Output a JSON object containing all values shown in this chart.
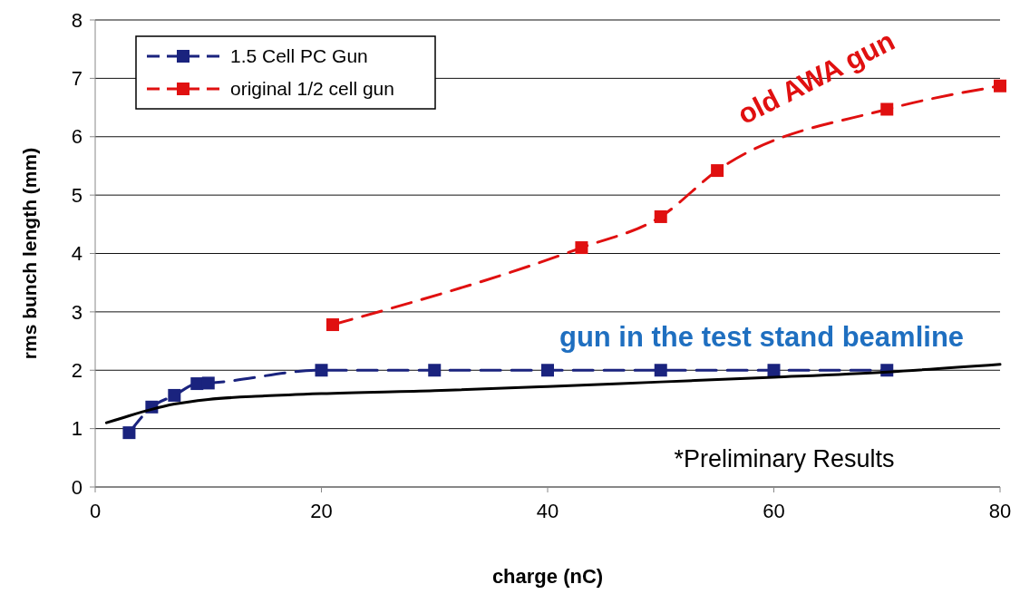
{
  "chart_data": {
    "type": "line",
    "xlabel": "charge (nC)",
    "ylabel": "rms bunch length (mm)",
    "xlim": [
      0,
      80
    ],
    "xticks": [
      0,
      20,
      40,
      60,
      80
    ],
    "ylim": [
      0,
      8
    ],
    "yticks": [
      0,
      1,
      2,
      3,
      4,
      5,
      6,
      7,
      8
    ],
    "grid": "y",
    "legend": "top left",
    "series": [
      {
        "name": "1.5 Cell PC Gun",
        "color": "#1a237e",
        "marker": "square",
        "line_style": "dashed",
        "x": [
          3,
          5,
          7,
          9,
          10,
          20,
          30,
          40,
          50,
          60,
          70
        ],
        "values": [
          0.93,
          1.37,
          1.57,
          1.77,
          1.78,
          2.0,
          2.0,
          2.0,
          2.0,
          2.0,
          2.0
        ]
      },
      {
        "name": "original 1/2 cell gun",
        "color": "#e01010",
        "marker": "square",
        "line_style": "dashed",
        "x": [
          21,
          43,
          50,
          55,
          70,
          80
        ],
        "values": [
          2.78,
          4.1,
          4.63,
          5.42,
          6.47,
          6.87
        ]
      },
      {
        "color": "#000000",
        "marker": "none",
        "line_style": "solid",
        "x": [
          1,
          3,
          5,
          7,
          10,
          15,
          20,
          30,
          40,
          50,
          60,
          70,
          80
        ],
        "values": [
          1.1,
          1.22,
          1.33,
          1.42,
          1.5,
          1.56,
          1.6,
          1.65,
          1.72,
          1.8,
          1.88,
          1.97,
          2.1
        ]
      }
    ],
    "annotations": [
      "old AWA gun",
      "gun in the test stand beamline",
      "*Preliminary Results"
    ]
  }
}
